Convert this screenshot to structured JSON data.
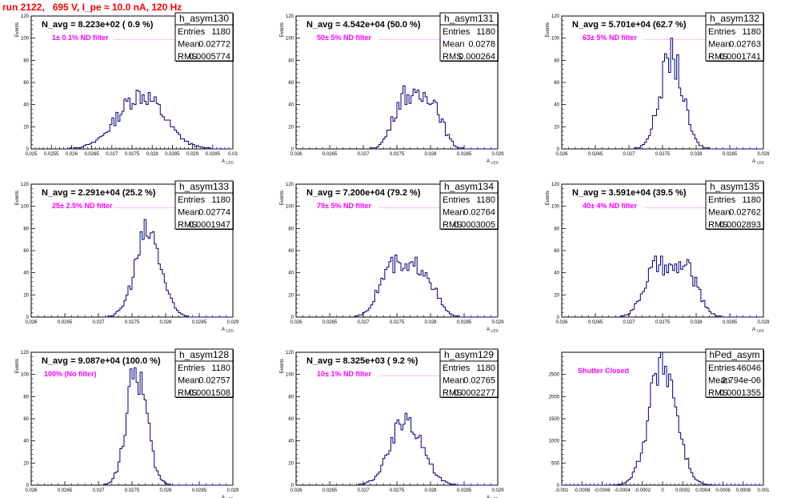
{
  "page": {
    "title": "run 2122,   695 V, I_pe ≈ 10.0 nA, 120 Hz",
    "title_color": "#ff0000",
    "hist_color": "#000080",
    "annotation_color": "#ff00ff"
  },
  "chart_data": [
    {
      "type": "bar",
      "name": "h_asym130",
      "stats": {
        "entries_label": "Entries",
        "entries": "1180",
        "mean_label": "Mean",
        "mean": "0.02772",
        "rms_label": "RMS",
        "rms": "0.0005774"
      },
      "navg": "N_avg = 8.223e+02 ( 0.9 %)",
      "filter": "1± 0.1% ND filter",
      "xlabel": "A",
      "xlabel_sub": "LED",
      "ylabel": "Events",
      "xlim": [
        0.025,
        0.03
      ],
      "ylim": [
        0,
        120
      ],
      "xticks": [
        "0.025",
        "0.0255",
        "0.026",
        "0.0265",
        "0.027",
        "0.0275",
        "0.028",
        "0.0285",
        "0.029",
        "0.0295",
        "0.03"
      ],
      "yticks": [
        "0",
        "20",
        "40",
        "60",
        "80",
        "100",
        "120"
      ],
      "mu": 0.02772,
      "sigma": 0.00057,
      "peak": 50,
      "bimodal": false
    },
    {
      "type": "bar",
      "name": "h_asym131",
      "stats": {
        "entries_label": "Entries",
        "entries": "1180",
        "mean_label": "Mean",
        "mean": "0.0278",
        "rms_label": "RMS",
        "rms": "0.000264"
      },
      "navg": "N_avg = 4.542e+04 (50.0 %)",
      "filter": "50± 5% ND filter",
      "xlabel": "A",
      "xlabel_sub": "LED",
      "ylabel": "Events",
      "xlim": [
        0.026,
        0.029
      ],
      "ylim": [
        0,
        120
      ],
      "xticks": [
        "0.026",
        "0.0265",
        "0.027",
        "0.0275",
        "0.028",
        "0.0285",
        "0.029"
      ],
      "yticks": [
        "0",
        "20",
        "40",
        "60",
        "80",
        "100",
        "120"
      ],
      "mu": 0.0278,
      "sigma": 0.00026,
      "peak": 50,
      "bimodal": true
    },
    {
      "type": "bar",
      "name": "h_asym132",
      "stats": {
        "entries_label": "Entries",
        "entries": "1180",
        "mean_label": "Mean",
        "mean": "0.02763",
        "rms_label": "RMS",
        "rms": "0.0001741"
      },
      "navg": "N_avg = 5.701e+04 (62.7 %)",
      "filter": "63± 5% ND filter",
      "xlabel": "A",
      "xlabel_sub": "LED",
      "ylabel": "Events",
      "xlim": [
        0.026,
        0.029
      ],
      "ylim": [
        0,
        120
      ],
      "xticks": [
        "0.026",
        "0.0265",
        "0.027",
        "0.0275",
        "0.028",
        "0.0285",
        "0.029"
      ],
      "yticks": [
        "0",
        "20",
        "40",
        "60",
        "80",
        "100",
        "120"
      ],
      "mu": 0.02763,
      "sigma": 0.00017,
      "peak": 85,
      "bimodal": false
    },
    {
      "type": "bar",
      "name": "h_asym133",
      "stats": {
        "entries_label": "Entries",
        "entries": "1180",
        "mean_label": "Mean",
        "mean": "0.02774",
        "rms_label": "RMS",
        "rms": "0.0001947"
      },
      "navg": "N_avg = 2.291e+04 (25.2 %)",
      "filter": "25± 2.5% ND filter",
      "xlabel": "A",
      "xlabel_sub": "LED",
      "ylabel": "Events",
      "xlim": [
        0.026,
        0.029
      ],
      "ylim": [
        0,
        120
      ],
      "xticks": [
        "0.026",
        "0.0265",
        "0.027",
        "0.0275",
        "0.028",
        "0.0285",
        "0.029"
      ],
      "yticks": [
        "0",
        "20",
        "40",
        "60",
        "80",
        "100",
        "120"
      ],
      "mu": 0.02774,
      "sigma": 0.00019,
      "peak": 78,
      "bimodal": false
    },
    {
      "type": "bar",
      "name": "h_asym134",
      "stats": {
        "entries_label": "Entries",
        "entries": "1180",
        "mean_label": "Mean",
        "mean": "0.02764",
        "rms_label": "RMS",
        "rms": "0.0003005"
      },
      "navg": "N_avg = 7.200e+04 (79.2 %)",
      "filter": "79± 5% ND filter",
      "xlabel": "A",
      "xlabel_sub": "LED",
      "ylabel": "Events",
      "xlim": [
        0.026,
        0.029
      ],
      "ylim": [
        0,
        120
      ],
      "xticks": [
        "0.026",
        "0.0265",
        "0.027",
        "0.0275",
        "0.028",
        "0.0285",
        "0.029"
      ],
      "yticks": [
        "0",
        "20",
        "40",
        "60",
        "80",
        "100",
        "120"
      ],
      "mu": 0.02764,
      "sigma": 0.0003,
      "peak": 47,
      "bimodal": true
    },
    {
      "type": "bar",
      "name": "h_asym135",
      "stats": {
        "entries_label": "Entries",
        "entries": "1180",
        "mean_label": "Mean",
        "mean": "0.02762",
        "rms_label": "RMS",
        "rms": "0.0002893"
      },
      "navg": "N_avg = 3.591e+04 (39.5 %)",
      "filter": "40± 4% ND filter",
      "xlabel": "A",
      "xlabel_sub": "LED",
      "ylabel": "Events",
      "xlim": [
        0.026,
        0.029
      ],
      "ylim": [
        0,
        120
      ],
      "xticks": [
        "0.026",
        "0.0265",
        "0.027",
        "0.0275",
        "0.028",
        "0.0285",
        "0.029"
      ],
      "yticks": [
        "0",
        "20",
        "40",
        "60",
        "80",
        "100",
        "120"
      ],
      "mu": 0.02762,
      "sigma": 0.00029,
      "peak": 47,
      "bimodal": true
    },
    {
      "type": "bar",
      "name": "h_asym128",
      "stats": {
        "entries_label": "Entries",
        "entries": "1180",
        "mean_label": "Mean",
        "mean": "0.02757",
        "rms_label": "RMS",
        "rms": "0.0001508"
      },
      "navg": "N_avg = 9.087e+04 (100.0 %)",
      "filter": "100% (No filter)",
      "xlabel": "A",
      "xlabel_sub": "LED",
      "ylabel": "Events",
      "xlim": [
        0.026,
        0.029
      ],
      "ylim": [
        0,
        120
      ],
      "xticks": [
        "0.026",
        "0.0265",
        "0.027",
        "0.0275",
        "0.028",
        "0.0285",
        "0.029"
      ],
      "yticks": [
        "0",
        "20",
        "40",
        "60",
        "80",
        "100",
        "120"
      ],
      "mu": 0.02757,
      "sigma": 0.00015,
      "peak": 105,
      "bimodal": false
    },
    {
      "type": "bar",
      "name": "h_asym129",
      "stats": {
        "entries_label": "Entries",
        "entries": "1180",
        "mean_label": "Mean",
        "mean": "0.02765",
        "rms_label": "RMS",
        "rms": "0.0002277"
      },
      "navg": "N_avg = 8.325e+03 ( 9.2 %)",
      "filter": "10± 1% ND filter",
      "xlabel": "A",
      "xlabel_sub": "LED",
      "ylabel": "Events",
      "xlim": [
        0.026,
        0.029
      ],
      "ylim": [
        0,
        120
      ],
      "xticks": [
        "0.026",
        "0.0265",
        "0.027",
        "0.0275",
        "0.028",
        "0.0285",
        "0.029"
      ],
      "yticks": [
        "0",
        "20",
        "40",
        "60",
        "80",
        "100",
        "120"
      ],
      "mu": 0.02765,
      "sigma": 0.00023,
      "peak": 62,
      "bimodal": false
    },
    {
      "type": "bar",
      "name": "hPed_asym",
      "stats": {
        "entries_label": "Entries",
        "entries": "46046",
        "mean_label": "Mean",
        "mean": "2.794e-06",
        "rms_label": "RMS",
        "rms": "0.0001355"
      },
      "navg": "",
      "filter": "Shutter Closed",
      "xlabel": "",
      "xlabel_sub": "",
      "ylabel": "",
      "xlim": [
        -0.001,
        0.001
      ],
      "ylim": [
        0,
        3000
      ],
      "xticks": [
        "-0.001",
        "-0.0008",
        "-0.0006",
        "-0.0004",
        "-0.0002",
        "0",
        "0.0002",
        "0.0004",
        "0.0006",
        "0.0008",
        "0.001"
      ],
      "yticks": [
        "0",
        "500",
        "1000",
        "1500",
        "2000",
        "2500"
      ],
      "mu": 2.8e-06,
      "sigma": 0.000135,
      "peak": 2860,
      "bimodal": false
    }
  ]
}
